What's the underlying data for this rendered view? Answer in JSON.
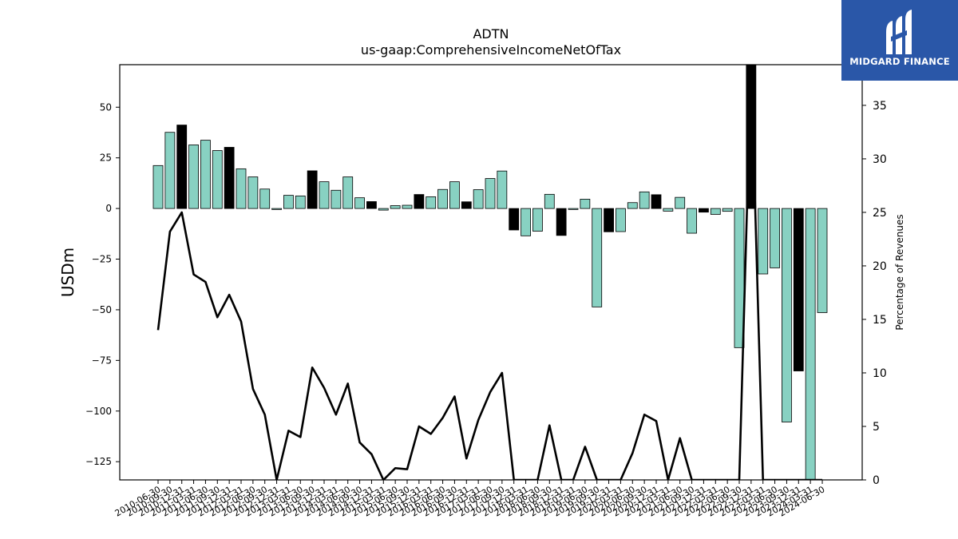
{
  "chart_data": {
    "type": "bar",
    "title": "ADTN",
    "subtitle": "us-gaap:ComprehensiveIncomeNetOfTax",
    "ylabel": "USDm",
    "y2label": "Percentage of Revenues",
    "ylim": [
      -134,
      71
    ],
    "y2lim": [
      0,
      38.8
    ],
    "yticks": [
      50,
      25,
      0,
      -25,
      -50,
      -75,
      -100,
      -125
    ],
    "y2ticks": [
      35,
      30,
      25,
      20,
      15,
      10,
      5,
      0
    ],
    "categories": [
      "2010-06-30",
      "2010-09-30",
      "2010-12-31",
      "2011-03-31",
      "2011-06-30",
      "2011-09-30",
      "2011-12-31",
      "2012-03-31",
      "2012-06-30",
      "2012-09-30",
      "2012-12-31",
      "2013-03-31",
      "2013-06-30",
      "2013-09-30",
      "2013-12-31",
      "2014-03-31",
      "2014-06-30",
      "2014-09-30",
      "2014-12-31",
      "2015-03-31",
      "2015-06-30",
      "2015-09-30",
      "2015-12-31",
      "2016-03-31",
      "2016-06-30",
      "2016-09-30",
      "2016-12-31",
      "2017-03-31",
      "2017-06-30",
      "2017-09-30",
      "2017-12-31",
      "2018-03-31",
      "2018-06-30",
      "2018-09-30",
      "2018-12-31",
      "2019-03-31",
      "2019-06-30",
      "2019-09-30",
      "2019-12-31",
      "2020-03-31",
      "2020-06-30",
      "2020-09-30",
      "2020-12-31",
      "2021-03-31",
      "2021-06-30",
      "2021-09-30",
      "2021-12-31",
      "2022-03-31",
      "2022-06-30",
      "2022-09-30",
      "2022-12-31",
      "2023-03-31",
      "2023-06-30",
      "2023-09-30",
      "2023-12-31",
      "2024-03-31",
      "2024-06-30"
    ],
    "series": [
      {
        "type": "bar",
        "values": [
          21.2,
          37.6,
          41.2,
          31.4,
          33.7,
          28.6,
          30.2,
          19.6,
          15.6,
          9.6,
          -0.5,
          6.5,
          6.2,
          18.6,
          13.2,
          9.0,
          15.6,
          5.3,
          3.4,
          -0.8,
          1.4,
          1.6,
          6.9,
          5.8,
          9.4,
          13.2,
          3.3,
          9.3,
          14.8,
          18.5,
          -10.6,
          -13.5,
          -11.2,
          7.0,
          -13.3,
          -0.5,
          4.6,
          -48.6,
          -11.5,
          -11.4,
          2.9,
          8.2,
          6.8,
          -1.3,
          5.5,
          -12.2,
          -1.8,
          -2.9,
          -1.4,
          -68.7,
          71,
          -32.3,
          -29.3,
          -105.4,
          -80.2,
          -134,
          -51.4
        ],
        "highlight": [
          "2010-12-31",
          "2011-12-31",
          "2013-09-30",
          "2014-12-31",
          "2015-12-31",
          "2016-12-31",
          "2017-12-31",
          "2018-12-31",
          "2019-12-31",
          "2020-12-31",
          "2021-12-31",
          "2022-12-31",
          "2023-12-31"
        ],
        "colors": {
          "normal": "#88d1c2",
          "highlight": "#000000",
          "edge": "#000000"
        }
      },
      {
        "type": "line",
        "axis": "right",
        "values": [
          14.0,
          23.2,
          25.0,
          19.2,
          18.5,
          15.2,
          17.3,
          14.8,
          8.5,
          6.1,
          0,
          4.6,
          4.0,
          10.5,
          8.6,
          6.1,
          9.0,
          3.5,
          2.4,
          0,
          1.1,
          1.0,
          5.0,
          4.3,
          5.8,
          7.8,
          2.0,
          5.6,
          8.2,
          10.0,
          0,
          0,
          0,
          5.1,
          0,
          0,
          3.1,
          0,
          0,
          0,
          2.5,
          6.1,
          5.5,
          0,
          3.9,
          0,
          0,
          0,
          0,
          0,
          38.8,
          0,
          0,
          0,
          0,
          0,
          0
        ],
        "color": "#000000"
      }
    ],
    "grid": false,
    "legend": "none"
  },
  "logo": {
    "text": "MIDGARD FINANCE",
    "background": "#2a57a8"
  }
}
